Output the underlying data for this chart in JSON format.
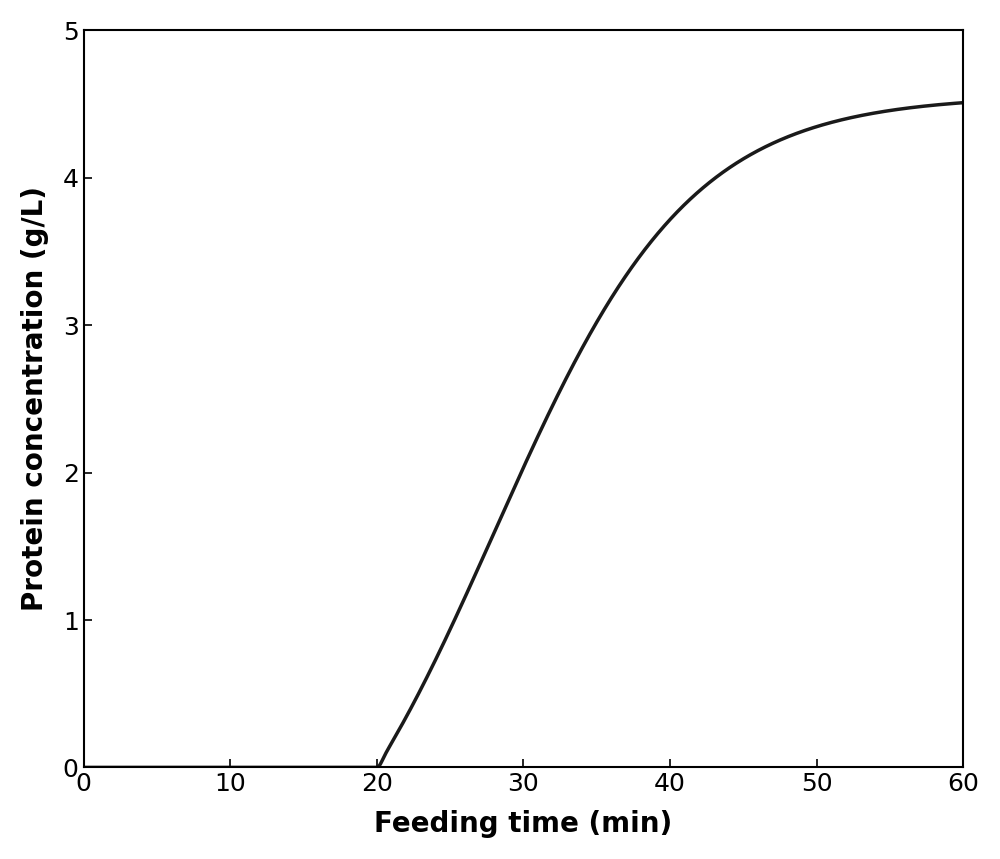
{
  "xlabel": "Feeding time (min)",
  "ylabel": "Protein concentration (g/L)",
  "xlim": [
    0,
    60
  ],
  "ylim": [
    0,
    5
  ],
  "xticks": [
    0,
    10,
    20,
    30,
    40,
    50,
    60
  ],
  "yticks": [
    0,
    1,
    2,
    3,
    4,
    5
  ],
  "line_color": "#1a1a1a",
  "line_width": 2.5,
  "background_color": "#ffffff",
  "xlabel_fontsize": 20,
  "ylabel_fontsize": 20,
  "tick_fontsize": 18,
  "curve_amplitude": 4.47,
  "curve_t_inflection": 27.5,
  "curve_k": 0.18,
  "curve_onset": 20.0
}
